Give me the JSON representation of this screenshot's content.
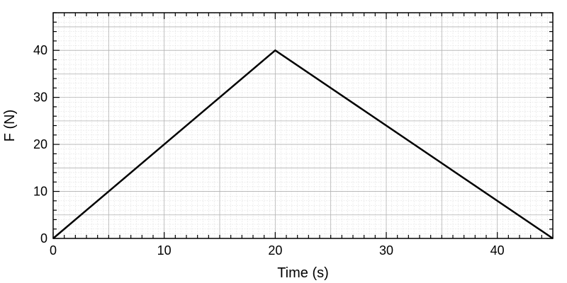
{
  "chart_data": {
    "type": "line",
    "title": "",
    "xlabel": "Time (s)",
    "ylabel": "F (N)",
    "xlim": [
      0,
      45
    ],
    "ylim": [
      0,
      48
    ],
    "x_ticks": [
      0,
      10,
      20,
      30,
      40
    ],
    "y_ticks": [
      0,
      10,
      20,
      30,
      40
    ],
    "x_tick_labels": [
      "0",
      "10",
      "20",
      "30",
      "40"
    ],
    "y_tick_labels": [
      "0",
      "10",
      "20",
      "30",
      "40"
    ],
    "grid": true,
    "minor_grid": true,
    "series": [
      {
        "x": [
          0,
          20,
          45
        ],
        "y": [
          0,
          40,
          0
        ],
        "color": "#000000"
      }
    ]
  }
}
